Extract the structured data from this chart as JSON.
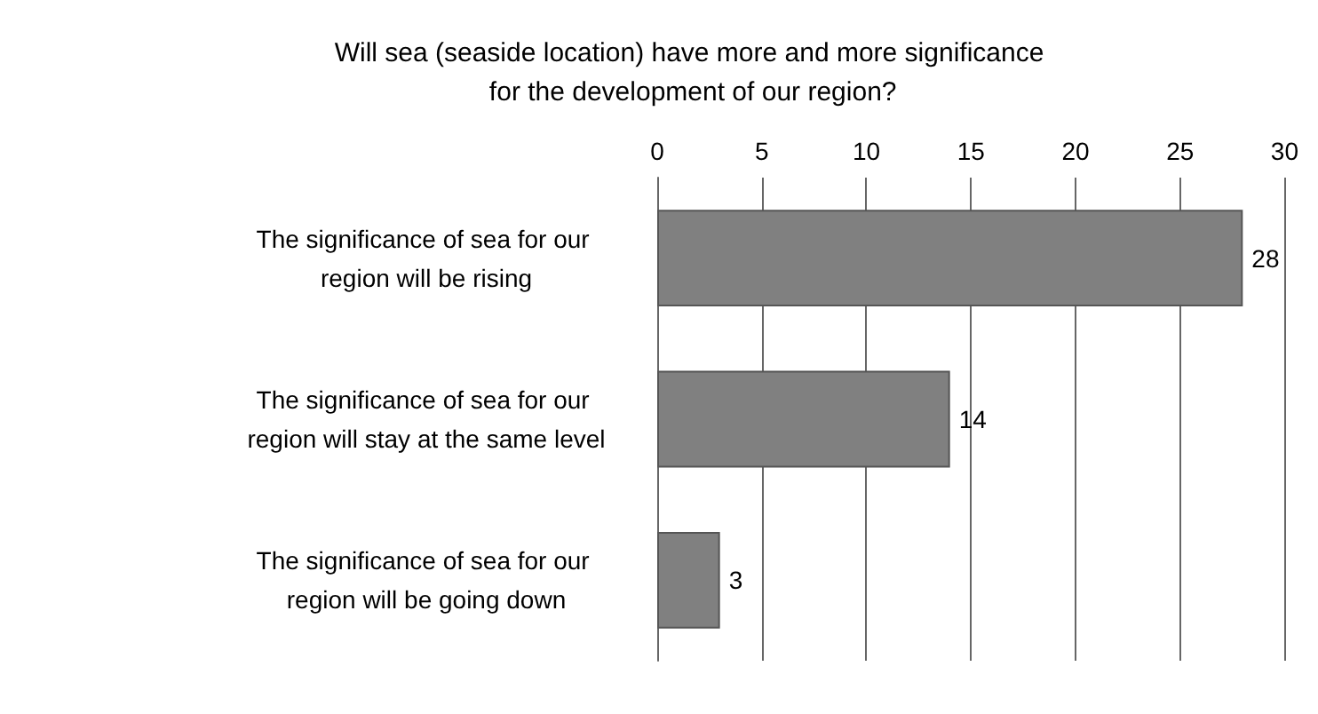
{
  "chart_data": {
    "type": "bar",
    "orientation": "horizontal",
    "title": "Will sea (seaside location) have more and more significance for the development of our region?",
    "categories": [
      "The significance of sea for our region will be rising",
      "The significance of sea for our region will stay at the same level",
      "The significance of sea for our region will be going down"
    ],
    "values": [
      28,
      14,
      3
    ],
    "color": "#808080",
    "xlim": [
      0,
      30
    ],
    "xticks": [
      0,
      5,
      10,
      15,
      20,
      25,
      30
    ],
    "grid": "x",
    "data_labels": true
  }
}
